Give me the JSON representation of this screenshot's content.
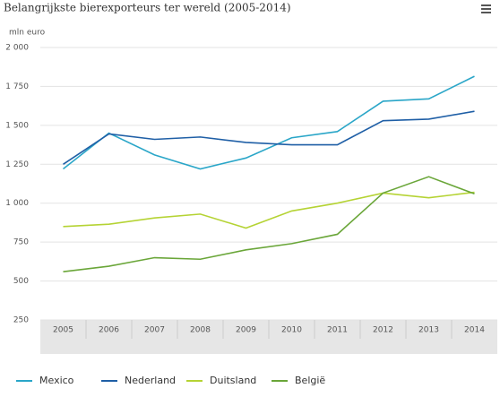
{
  "chart_data": {
    "type": "line",
    "title": "Belangrijkste bierexporteurs ter wereld (2005-2014)",
    "y_label": "mln euro",
    "categories": [
      "2005",
      "2006",
      "2007",
      "2008",
      "2009",
      "2010",
      "2011",
      "2012",
      "2013",
      "2014"
    ],
    "series": [
      {
        "name": "Mexico",
        "color": "#2aa6c8",
        "values": [
          1220,
          1450,
          1310,
          1220,
          1290,
          1420,
          1460,
          1655,
          1670,
          1815
        ]
      },
      {
        "name": "Nederland",
        "color": "#1f5fa6",
        "values": [
          1250,
          1445,
          1410,
          1425,
          1390,
          1375,
          1375,
          1530,
          1540,
          1590
        ]
      },
      {
        "name": "Duitsland",
        "color": "#b5d334",
        "values": [
          850,
          865,
          905,
          930,
          840,
          950,
          1000,
          1065,
          1035,
          1070
        ]
      },
      {
        "name": "België",
        "color": "#6aa639",
        "values": [
          560,
          595,
          650,
          640,
          700,
          740,
          800,
          1065,
          1170,
          1060
        ]
      }
    ],
    "ylim": [
      250,
      2000
    ],
    "yticks": [
      250,
      500,
      750,
      {
        "value": 1000,
        "label": "1 000"
      },
      {
        "value": 1250,
        "label": "1 250"
      },
      {
        "value": 1500,
        "label": "1 500"
      },
      {
        "value": 1750,
        "label": "1 750"
      },
      {
        "value": 2000,
        "label": "2 000"
      }
    ],
    "grid": true
  }
}
